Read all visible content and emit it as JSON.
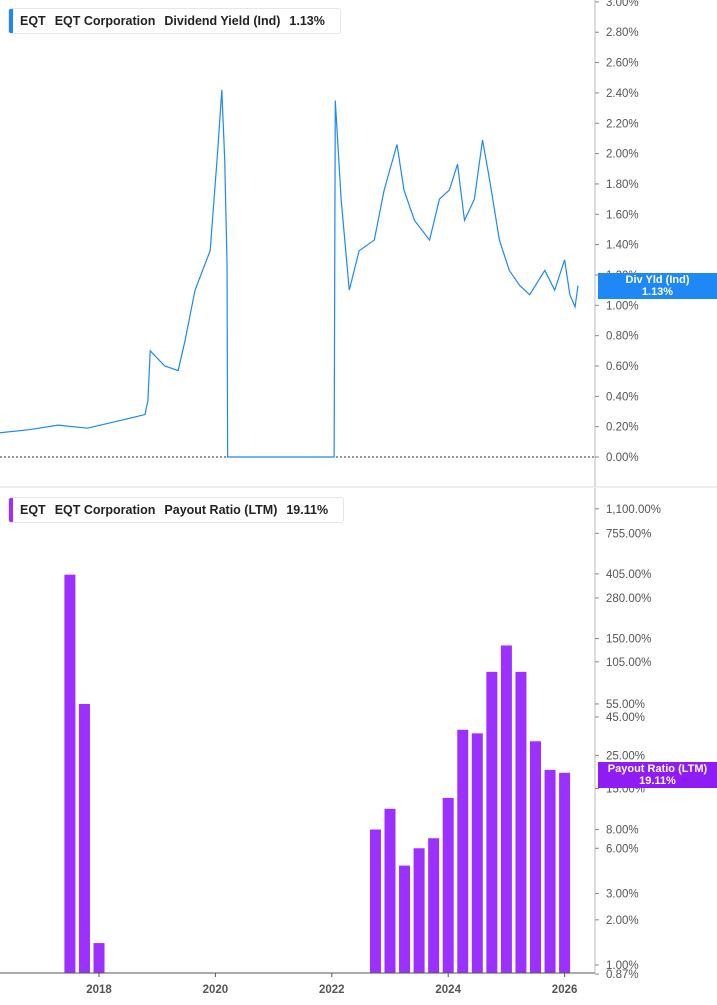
{
  "chart_data": [
    {
      "type": "line",
      "ticker": "EQT",
      "company": "EQT Corporation",
      "metric": "Dividend Yield (Ind)",
      "last_value": "1.13%",
      "tag_label": "Div Yld (Ind)",
      "color": "#1e88f5",
      "scale": "linear",
      "ylim": [
        0,
        3.0
      ],
      "yticks": [
        "0.00%",
        "0.20%",
        "0.40%",
        "0.60%",
        "0.80%",
        "1.00%",
        "1.20%",
        "1.40%",
        "1.60%",
        "1.80%",
        "2.00%",
        "2.20%",
        "2.40%",
        "2.60%",
        "2.80%",
        "3.00%"
      ],
      "points": [
        [
          2016.3,
          0.16
        ],
        [
          2016.8,
          0.18
        ],
        [
          2017.3,
          0.21
        ],
        [
          2017.8,
          0.19
        ],
        [
          2018.36,
          0.24
        ],
        [
          2018.79,
          0.28
        ],
        [
          2018.84,
          0.37
        ],
        [
          2018.88,
          0.7
        ],
        [
          2019.13,
          0.6
        ],
        [
          2019.36,
          0.57
        ],
        [
          2019.48,
          0.77
        ],
        [
          2019.65,
          1.1
        ],
        [
          2019.91,
          1.36
        ],
        [
          2020.04,
          2.02
        ],
        [
          2020.11,
          2.42
        ],
        [
          2020.16,
          1.96
        ],
        [
          2020.2,
          1.27
        ],
        [
          2020.21,
          0.0
        ],
        [
          2022.04,
          0.0
        ],
        [
          2022.06,
          2.35
        ],
        [
          2022.16,
          1.7
        ],
        [
          2022.3,
          1.1
        ],
        [
          2022.47,
          1.36
        ],
        [
          2022.73,
          1.43
        ],
        [
          2022.9,
          1.76
        ],
        [
          2023.12,
          2.06
        ],
        [
          2023.24,
          1.76
        ],
        [
          2023.42,
          1.56
        ],
        [
          2023.68,
          1.43
        ],
        [
          2023.85,
          1.7
        ],
        [
          2024.02,
          1.76
        ],
        [
          2024.16,
          1.93
        ],
        [
          2024.28,
          1.56
        ],
        [
          2024.45,
          1.7
        ],
        [
          2024.59,
          2.09
        ],
        [
          2024.71,
          1.83
        ],
        [
          2024.88,
          1.43
        ],
        [
          2025.05,
          1.23
        ],
        [
          2025.23,
          1.13
        ],
        [
          2025.4,
          1.07
        ],
        [
          2025.66,
          1.23
        ],
        [
          2025.83,
          1.1
        ],
        [
          2026.0,
          1.3
        ],
        [
          2026.09,
          1.07
        ],
        [
          2026.18,
          0.99
        ],
        [
          2026.23,
          1.13
        ]
      ]
    },
    {
      "type": "bar",
      "ticker": "EQT",
      "company": "EQT Corporation",
      "metric": "Payout Ratio (LTM)",
      "last_value": "19.11%",
      "tag_label": "Payout Ratio (LTM)",
      "color": "#9b30ff",
      "scale": "log",
      "ylim": [
        0.87,
        1100
      ],
      "yticks": [
        [
          1100,
          "1,100.00%"
        ],
        [
          755,
          "755.00%"
        ],
        [
          405,
          "405.00%"
        ],
        [
          280,
          "280.00%"
        ],
        [
          150,
          "150.00%"
        ],
        [
          105,
          "105.00%"
        ],
        [
          55,
          "55.00%"
        ],
        [
          45,
          "45.00%"
        ],
        [
          25,
          "25.00%"
        ],
        [
          15,
          "15.00%"
        ],
        [
          8,
          "8.00%"
        ],
        [
          6,
          "6.00%"
        ],
        [
          3,
          "3.00%"
        ],
        [
          2,
          "2.00%"
        ],
        [
          1,
          "1.00%"
        ],
        [
          0.87,
          "0.87%"
        ]
      ],
      "x": [
        2017.5,
        2017.75,
        2018.0,
        2022.75,
        2023.0,
        2023.25,
        2023.5,
        2023.75,
        2024.0,
        2024.25,
        2024.5,
        2024.75,
        2025.0,
        2025.25,
        2025.5,
        2025.75,
        2026.0
      ],
      "values": [
        400,
        55,
        1.4,
        8,
        11,
        4.6,
        6,
        7,
        13,
        37,
        35,
        90,
        135,
        90,
        31,
        20,
        19.11
      ]
    }
  ],
  "xticks": [
    "2018",
    "2020",
    "2022",
    "2024",
    "2026"
  ]
}
